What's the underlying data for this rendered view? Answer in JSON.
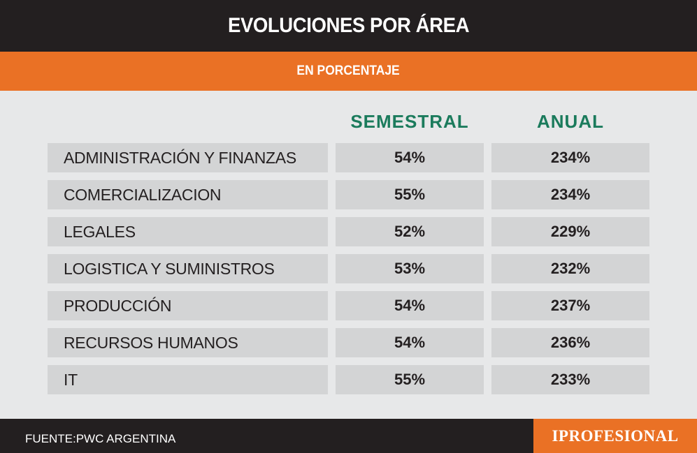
{
  "header": {
    "title": "EVOLUCIONES POR ÁREA",
    "subtitle": "EN PORCENTAJE"
  },
  "colors": {
    "header_bg": "#231f20",
    "accent_orange": "#ea7125",
    "column_header_green": "#1b7b5c",
    "background": "#e7e8e9",
    "cell_bg": "#d3d4d5"
  },
  "chart_data": {
    "type": "table",
    "title": "EVOLUCIONES POR ÁREA",
    "subtitle": "EN PORCENTAJE",
    "columns": [
      "SEMESTRAL",
      "ANUAL"
    ],
    "rows": [
      {
        "area": "ADMINISTRACIÓN Y FINANZAS",
        "semestral": "54%",
        "anual": "234%"
      },
      {
        "area": "COMERCIALIZACION",
        "semestral": "55%",
        "anual": "234%"
      },
      {
        "area": "LEGALES",
        "semestral": "52%",
        "anual": "229%"
      },
      {
        "area": "LOGISTICA Y SUMINISTROS",
        "semestral": "53%",
        "anual": "232%"
      },
      {
        "area": "PRODUCCIÓN",
        "semestral": "54%",
        "anual": "237%"
      },
      {
        "area": "RECURSOS HUMANOS",
        "semestral": "54%",
        "anual": "236%"
      },
      {
        "area": "IT",
        "semestral": "55%",
        "anual": "233%"
      }
    ]
  },
  "footer": {
    "source": "FUENTE:PWC ARGENTINA",
    "logo": "IPROFESIONAL"
  }
}
